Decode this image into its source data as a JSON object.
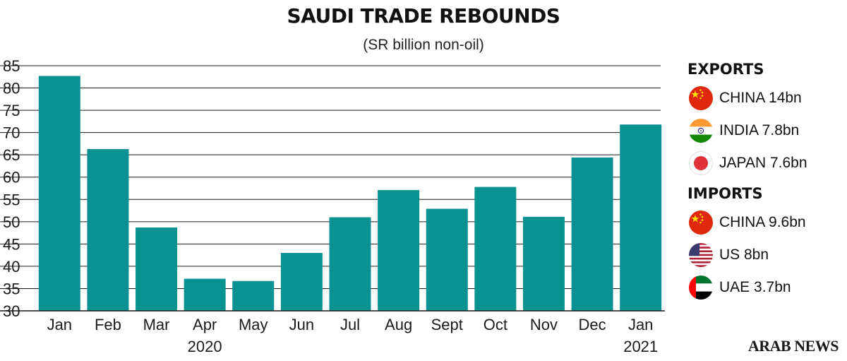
{
  "chart_data": {
    "type": "bar",
    "title": "SAUDI TRADE REBOUNDS",
    "subtitle": "(SR billion non-oil)",
    "categories": [
      "Jan",
      "Feb",
      "Mar",
      "Apr",
      "May",
      "Jun",
      "Jul",
      "Aug",
      "Sept",
      "Oct",
      "Nov",
      "Dec",
      "Jan"
    ],
    "year_labels": [
      {
        "index": 3,
        "label": "2020"
      },
      {
        "index": 12,
        "label": "2021"
      }
    ],
    "values": [
      82.7,
      66.3,
      48.7,
      37.2,
      36.7,
      43.0,
      51.0,
      57.1,
      52.9,
      57.8,
      51.1,
      64.4,
      71.8
    ],
    "ylim": [
      30,
      85
    ],
    "yticks": [
      30,
      35,
      40,
      45,
      50,
      55,
      60,
      65,
      70,
      75,
      80,
      85
    ],
    "grid": true,
    "bar_color": "#0a9292",
    "xlabel": "",
    "ylabel": ""
  },
  "legend": {
    "exports_heading": "EXPORTS",
    "exports": [
      {
        "flag": "china-flag-icon",
        "label": "CHINA 14bn"
      },
      {
        "flag": "india-flag-icon",
        "label": "INDIA 7.8bn"
      },
      {
        "flag": "japan-flag-icon",
        "label": "JAPAN 7.6bn"
      }
    ],
    "imports_heading": "IMPORTS",
    "imports": [
      {
        "flag": "china-flag-icon",
        "label": "CHINA 9.6bn"
      },
      {
        "flag": "us-flag-icon",
        "label": "US 8bn"
      },
      {
        "flag": "uae-flag-icon",
        "label": "UAE 3.7bn"
      }
    ]
  },
  "brand": "ARAB NEWS"
}
